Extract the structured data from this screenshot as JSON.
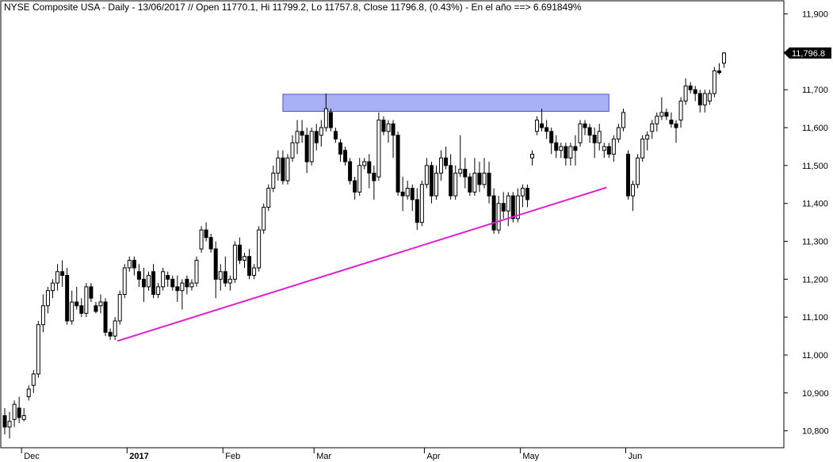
{
  "chart_data": {
    "type": "candlestick",
    "title": "NYSE Composite USA - Daily - 13/06/2017 // Open 11770.1, Hi 11799.2, Lo 11757.8, Close 11796.8, (0.43%) - En el año ==> 6.691849%",
    "ylim": [
      10770,
      11920
    ],
    "y_ticks": [
      10800,
      10900,
      11000,
      11100,
      11200,
      11300,
      11400,
      11500,
      11600,
      11700,
      11800,
      11900
    ],
    "y_tick_labels": [
      "10,800",
      "10,900",
      "11,000",
      "11,100",
      "11,200",
      "11,300",
      "11,400",
      "11,500",
      "11,600",
      "11,700",
      "11,800",
      "11,900"
    ],
    "x_tick_labels": [
      {
        "label": "Dec",
        "index": 4,
        "bold": false
      },
      {
        "label": "2017",
        "index": 26,
        "bold": true
      },
      {
        "label": "Feb",
        "index": 46,
        "bold": false
      },
      {
        "label": "Mar",
        "index": 65,
        "bold": false
      },
      {
        "label": "Apr",
        "index": 88,
        "bold": false
      },
      {
        "label": "May",
        "index": 108,
        "bold": false
      },
      {
        "label": "Jun",
        "index": 130,
        "bold": false
      }
    ],
    "last_value_label": "11,796.8",
    "last_value": 11796.8,
    "resistance_zone": {
      "start_index": 58,
      "end_index": 126,
      "y_low": 11643,
      "y_high": 11688,
      "color": "#aab0f5",
      "border": "#5050c8"
    },
    "support_line": {
      "x0_index": 23.5,
      "y0": 11037,
      "x1_index": 125.5,
      "y1": 11442,
      "color": "#e020d0"
    },
    "colors": {
      "bull_body": "#ffffff",
      "bear_body": "#000000",
      "wick": "#000000",
      "grid": "#d9d9d9"
    },
    "candles": [
      [
        10840,
        10860,
        10790,
        10810
      ],
      [
        10810,
        10850,
        10780,
        10825
      ],
      [
        10830,
        10880,
        10810,
        10870
      ],
      [
        10860,
        10890,
        10820,
        10835
      ],
      [
        10830,
        10860,
        10825,
        10840
      ],
      [
        10890,
        10920,
        10880,
        10910
      ],
      [
        10920,
        10960,
        10900,
        10950
      ],
      [
        10950,
        11090,
        10940,
        11080
      ],
      [
        11080,
        11160,
        11060,
        11130
      ],
      [
        11130,
        11180,
        11110,
        11170
      ],
      [
        11170,
        11200,
        11150,
        11190
      ],
      [
        11190,
        11240,
        11170,
        11220
      ],
      [
        11220,
        11250,
        11180,
        11210
      ],
      [
        11210,
        11230,
        11080,
        11090
      ],
      [
        11090,
        11170,
        11080,
        11140
      ],
      [
        11140,
        11180,
        11120,
        11130
      ],
      [
        11130,
        11150,
        11100,
        11110
      ],
      [
        11110,
        11190,
        11100,
        11180
      ],
      [
        11180,
        11190,
        11140,
        11150
      ],
      [
        11130,
        11140,
        11110,
        11115
      ],
      [
        11130,
        11160,
        11110,
        11140
      ],
      [
        11140,
        11150,
        11050,
        11060
      ],
      [
        11060,
        11070,
        11040,
        11050
      ],
      [
        11050,
        11100,
        11040,
        11090
      ],
      [
        11090,
        11170,
        11080,
        11160
      ],
      [
        11160,
        11240,
        11150,
        11230
      ],
      [
        11230,
        11260,
        11220,
        11250
      ],
      [
        11250,
        11260,
        11210,
        11230
      ],
      [
        11220,
        11240,
        11180,
        11200
      ],
      [
        11200,
        11230,
        11140,
        11180
      ],
      [
        11180,
        11220,
        11170,
        11210
      ],
      [
        11220,
        11240,
        11150,
        11160
      ],
      [
        11160,
        11190,
        11150,
        11180
      ],
      [
        11180,
        11230,
        11170,
        11220
      ],
      [
        11210,
        11220,
        11180,
        11200
      ],
      [
        11200,
        11210,
        11170,
        11180
      ],
      [
        11180,
        11210,
        11140,
        11170
      ],
      [
        11170,
        11200,
        11120,
        11190
      ],
      [
        11200,
        11210,
        11160,
        11180
      ],
      [
        11180,
        11200,
        11170,
        11190
      ],
      [
        11190,
        11260,
        11180,
        11250
      ],
      [
        11280,
        11340,
        11270,
        11330
      ],
      [
        11330,
        11350,
        11300,
        11310
      ],
      [
        11310,
        11320,
        11270,
        11280
      ],
      [
        11280,
        11300,
        11150,
        11200
      ],
      [
        11200,
        11240,
        11170,
        11220
      ],
      [
        11220,
        11260,
        11180,
        11190
      ],
      [
        11190,
        11210,
        11170,
        11200
      ],
      [
        11200,
        11300,
        11190,
        11290
      ],
      [
        11290,
        11310,
        11240,
        11250
      ],
      [
        11250,
        11270,
        11230,
        11260
      ],
      [
        11260,
        11280,
        11200,
        11210
      ],
      [
        11210,
        11240,
        11200,
        11230
      ],
      [
        11230,
        11340,
        11220,
        11330
      ],
      [
        11330,
        11400,
        11320,
        11390
      ],
      [
        11390,
        11450,
        11380,
        11440
      ],
      [
        11440,
        11500,
        11430,
        11480
      ],
      [
        11480,
        11540,
        11460,
        11520
      ],
      [
        11520,
        11540,
        11450,
        11460
      ],
      [
        11460,
        11530,
        11450,
        11520
      ],
      [
        11520,
        11580,
        11510,
        11560
      ],
      [
        11560,
        11620,
        11530,
        11590
      ],
      [
        11590,
        11620,
        11560,
        11580
      ],
      [
        11580,
        11600,
        11480,
        11510
      ],
      [
        11510,
        11600,
        11500,
        11590
      ],
      [
        11590,
        11610,
        11540,
        11560
      ],
      [
        11580,
        11620,
        11550,
        11600
      ],
      [
        11600,
        11690,
        11590,
        11650
      ],
      [
        11640,
        11650,
        11590,
        11600
      ],
      [
        11590,
        11600,
        11560,
        11570
      ],
      [
        11560,
        11570,
        11510,
        11530
      ],
      [
        11540,
        11550,
        11500,
        11510
      ],
      [
        11510,
        11520,
        11450,
        11460
      ],
      [
        11460,
        11470,
        11410,
        11430
      ],
      [
        11430,
        11520,
        11420,
        11500
      ],
      [
        11500,
        11520,
        11490,
        11510
      ],
      [
        11510,
        11530,
        11440,
        11480
      ],
      [
        11480,
        11500,
        11410,
        11460
      ],
      [
        11470,
        11640,
        11460,
        11620
      ],
      [
        11620,
        11630,
        11580,
        11590
      ],
      [
        11590,
        11620,
        11560,
        11610
      ],
      [
        11610,
        11620,
        11520,
        11580
      ],
      [
        11580,
        11590,
        11420,
        11430
      ],
      [
        11430,
        11470,
        11380,
        11420
      ],
      [
        11420,
        11460,
        11410,
        11440
      ],
      [
        11440,
        11450,
        11380,
        11410
      ],
      [
        11410,
        11440,
        11330,
        11350
      ],
      [
        11350,
        11460,
        11340,
        11450
      ],
      [
        11450,
        11520,
        11440,
        11500
      ],
      [
        11500,
        11510,
        11400,
        11420
      ],
      [
        11420,
        11500,
        11410,
        11480
      ],
      [
        11480,
        11540,
        11460,
        11520
      ],
      [
        11520,
        11550,
        11490,
        11500
      ],
      [
        11500,
        11530,
        11410,
        11420
      ],
      [
        11420,
        11500,
        11410,
        11480
      ],
      [
        11480,
        11580,
        11470,
        11490
      ],
      [
        11490,
        11520,
        11440,
        11470
      ],
      [
        11470,
        11480,
        11420,
        11430
      ],
      [
        11430,
        11520,
        11420,
        11480
      ],
      [
        11480,
        11510,
        11430,
        11450
      ],
      [
        11450,
        11520,
        11440,
        11480
      ],
      [
        11480,
        11510,
        11400,
        11420
      ],
      [
        11420,
        11440,
        11320,
        11330
      ],
      [
        11330,
        11420,
        11320,
        11400
      ],
      [
        11400,
        11430,
        11360,
        11380
      ],
      [
        11380,
        11430,
        11340,
        11420
      ],
      [
        11420,
        11430,
        11350,
        11360
      ],
      [
        11360,
        11440,
        11350,
        11420
      ],
      [
        11420,
        11450,
        11390,
        11440
      ],
      [
        11440,
        11450,
        11390,
        11410
      ],
      [
        11520,
        11540,
        11500,
        11530
      ],
      [
        11590,
        11630,
        11580,
        11620
      ],
      [
        11610,
        11650,
        11590,
        11600
      ],
      [
        11600,
        11620,
        11570,
        11590
      ],
      [
        11590,
        11600,
        11530,
        11560
      ],
      [
        11560,
        11580,
        11520,
        11540
      ],
      [
        11540,
        11560,
        11520,
        11550
      ],
      [
        11550,
        11560,
        11500,
        11520
      ],
      [
        11520,
        11560,
        11500,
        11550
      ],
      [
        11550,
        11580,
        11500,
        11540
      ],
      [
        11560,
        11620,
        11550,
        11610
      ],
      [
        11610,
        11620,
        11580,
        11600
      ],
      [
        11600,
        11610,
        11560,
        11580
      ],
      [
        11580,
        11600,
        11520,
        11560
      ],
      [
        11560,
        11610,
        11540,
        11590
      ],
      [
        11540,
        11560,
        11520,
        11550
      ],
      [
        11550,
        11560,
        11520,
        11530
      ],
      [
        11530,
        11580,
        11510,
        11570
      ],
      [
        11570,
        11610,
        11560,
        11600
      ],
      [
        11600,
        11650,
        11590,
        11640
      ],
      [
        11530,
        11540,
        11410,
        11420
      ],
      [
        11420,
        11460,
        11380,
        11450
      ],
      [
        11450,
        11530,
        11440,
        11520
      ],
      [
        11520,
        11580,
        11510,
        11570
      ],
      [
        11570,
        11590,
        11540,
        11580
      ],
      [
        11590,
        11620,
        11570,
        11610
      ],
      [
        11610,
        11640,
        11590,
        11630
      ],
      [
        11630,
        11680,
        11620,
        11640
      ],
      [
        11640,
        11650,
        11620,
        11630
      ],
      [
        11620,
        11640,
        11600,
        11610
      ],
      [
        11610,
        11620,
        11560,
        11600
      ],
      [
        11620,
        11680,
        11600,
        11670
      ],
      [
        11670,
        11730,
        11660,
        11710
      ],
      [
        11710,
        11720,
        11690,
        11700
      ],
      [
        11700,
        11710,
        11670,
        11690
      ],
      [
        11690,
        11700,
        11640,
        11660
      ],
      [
        11660,
        11700,
        11640,
        11690
      ],
      [
        11670,
        11700,
        11660,
        11690
      ],
      [
        11690,
        11760,
        11680,
        11750
      ],
      [
        11750,
        11770,
        11740,
        11745
      ],
      [
        11770,
        11799,
        11758,
        11797
      ]
    ]
  }
}
